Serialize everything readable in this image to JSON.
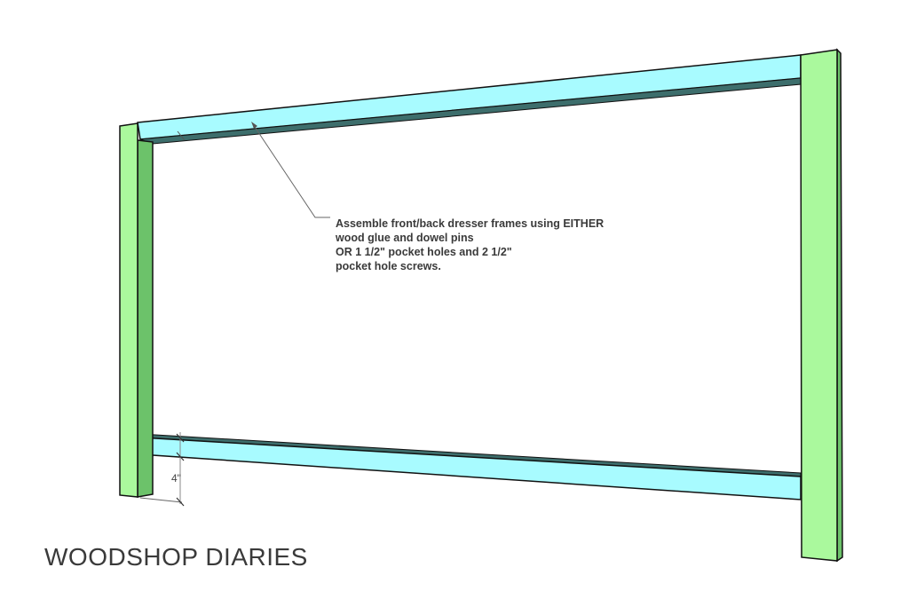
{
  "annotation": {
    "lines": [
      "Assemble front/back dresser frames using EITHER",
      "wood glue and dowel pins",
      "OR 1 1/2\" pocket holes and 2 1/2\"",
      "pocket hole screws."
    ]
  },
  "dimension_label": "4\"",
  "brand": "WOODSHOP DIARIES",
  "colors": {
    "leg": "#aaf99d",
    "leg_side": "#6cc26a",
    "rail": "#a8fbff",
    "rail_underside": "#3d6e6c",
    "outline": "#111111"
  }
}
